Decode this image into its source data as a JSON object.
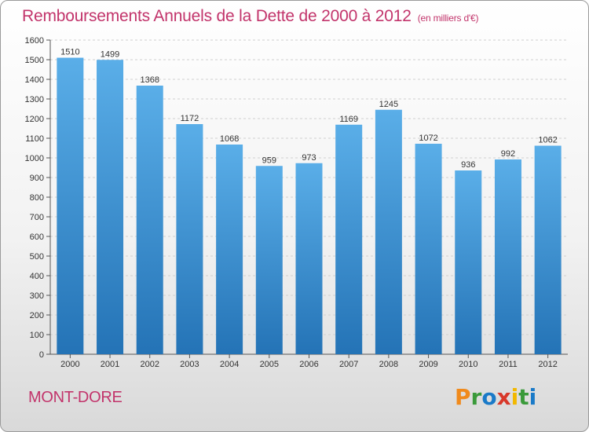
{
  "chart_data": {
    "type": "bar",
    "title": "Remboursements Annuels de la Dette de 2000 à 2012",
    "subtitle": "(en milliers d'€)",
    "categories": [
      "2000",
      "2001",
      "2002",
      "2003",
      "2004",
      "2005",
      "2006",
      "2007",
      "2008",
      "2009",
      "2010",
      "2011",
      "2012"
    ],
    "values": [
      1510,
      1499,
      1368,
      1172,
      1068,
      959,
      973,
      1169,
      1245,
      1072,
      936,
      992,
      1062
    ],
    "ylim": [
      0,
      1600
    ],
    "ytick_step": 100,
    "grid": true,
    "xlabel": "",
    "ylabel": "",
    "bar_color_top": "#5aaee8",
    "bar_color_bottom": "#2473b6"
  },
  "footer": {
    "commune": "MONT-DORE",
    "logo_letters": [
      "P",
      "r",
      "o",
      "x",
      "i",
      "t",
      "i"
    ],
    "logo_colors": [
      "#f08a1c",
      "#3a9a3a",
      "#1a7ac8",
      "#d8382a",
      "#f2b800",
      "#3a9a3a",
      "#1a7ac8"
    ]
  }
}
